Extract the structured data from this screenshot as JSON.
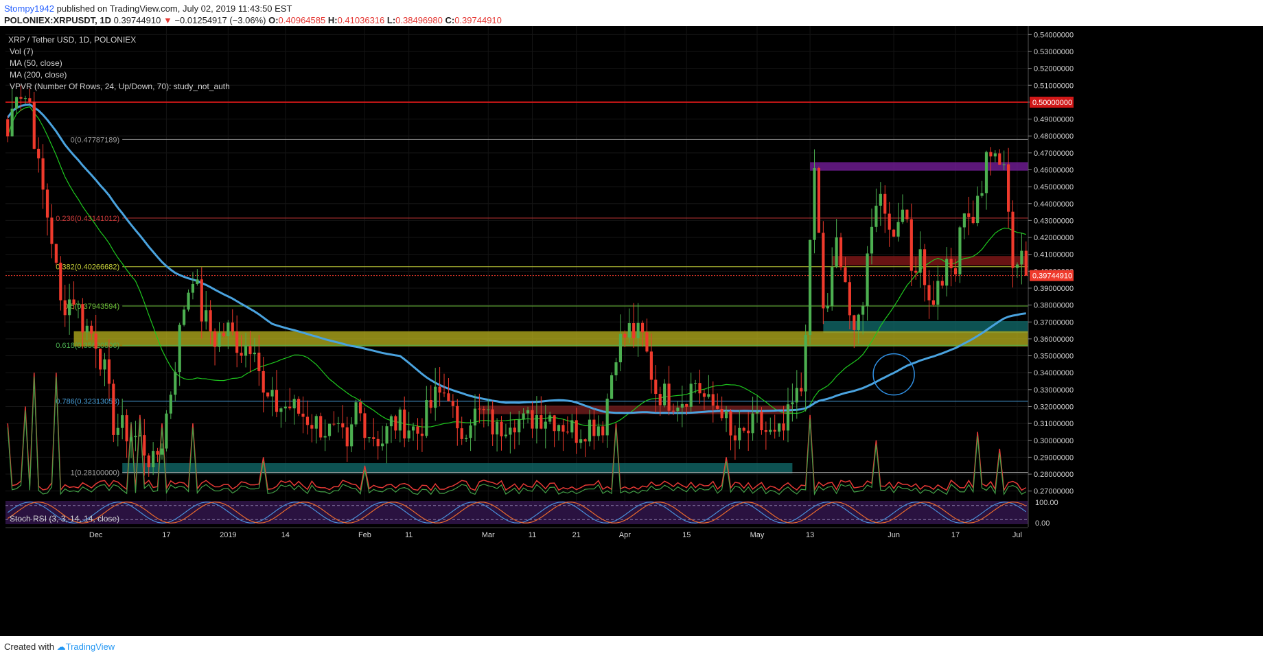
{
  "header": {
    "author": "Stompy1942",
    "published": "published on TradingView.com, July 02, 2019 11:43:50 EST",
    "symbol": "POLONIEX:XRPUSDT, 1D",
    "last": "0.39744910",
    "change_arrow": "▼",
    "change": "−0.01254917 (−3.06%)",
    "o_label": "O:",
    "o": "0.40964585",
    "h_label": "H:",
    "h": "0.41036316",
    "l_label": "L:",
    "l": "0.38496980",
    "c_label": "C:",
    "c": "0.39744910"
  },
  "footer": {
    "created_with": "Created with",
    "brand": "TradingView"
  },
  "colors": {
    "background": "#000000",
    "up": "#4caf50",
    "down": "#ef3a2c",
    "ma50": "#1ec81e",
    "ma200": "#4aa3df",
    "resistance": "#d01818",
    "stoch_k": "#4a8fd8",
    "stoch_d": "#e86a2c"
  },
  "chart_data": {
    "type": "candlestick",
    "title": "XRP / Tether USD, 1D, POLONIEX",
    "indicators": [
      "Vol (7)",
      "MA (50, close)",
      "MA (200, close)",
      "VPVR (Number Of Rows, 24, Up/Down, 70): study_not_auth"
    ],
    "ylim": [
      0.265,
      0.545
    ],
    "y_ticks": [
      "0.54000000",
      "0.53000000",
      "0.52000000",
      "0.51000000",
      "0.50000000",
      "0.49000000",
      "0.48000000",
      "0.47000000",
      "0.46000000",
      "0.45000000",
      "0.44000000",
      "0.43000000",
      "0.42000000",
      "0.41000000",
      "0.40000000",
      "0.39000000",
      "0.38000000",
      "0.37000000",
      "0.36000000",
      "0.35000000",
      "0.34000000",
      "0.33000000",
      "0.32000000",
      "0.31000000",
      "0.30000000",
      "0.29000000",
      "0.28000000",
      "0.27000000"
    ],
    "x_labels": [
      {
        "label": "Dec",
        "day": 20
      },
      {
        "label": "17",
        "day": 36
      },
      {
        "label": "2019",
        "day": 50
      },
      {
        "label": "14",
        "day": 63
      },
      {
        "label": "Feb",
        "day": 81
      },
      {
        "label": "11",
        "day": 91
      },
      {
        "label": "Mar",
        "day": 109
      },
      {
        "label": "11",
        "day": 119
      },
      {
        "label": "21",
        "day": 129
      },
      {
        "label": "Apr",
        "day": 140
      },
      {
        "label": "15",
        "day": 154
      },
      {
        "label": "May",
        "day": 170
      },
      {
        "label": "13",
        "day": 182
      },
      {
        "label": "Jun",
        "day": 201
      },
      {
        "label": "17",
        "day": 215
      },
      {
        "label": "Jul",
        "day": 229
      }
    ],
    "days_visible": 232,
    "last_price": 0.3974491,
    "last_price_label": "0.39744910",
    "resistance_line": {
      "value": 0.5,
      "label": "0.50000000"
    },
    "fib_levels": [
      {
        "ratio": "0",
        "value": 0.47787189,
        "label": "0(0.47787189)",
        "color": "#9e9e9e"
      },
      {
        "ratio": "0.236",
        "value": 0.43141012,
        "label": "0.236(0.43141012)",
        "color": "#d13b3b"
      },
      {
        "ratio": "0.382",
        "value": 0.40266682,
        "label": "0.382(0.40266682)",
        "color": "#c8d23a"
      },
      {
        "ratio": "0.5",
        "value": 0.37943594,
        "label": "0.5(0.37943594)",
        "color": "#6fc43a"
      },
      {
        "ratio": "0.618",
        "value": 0.35620506,
        "label": "0.618(0.35620506)",
        "color": "#4caf50"
      },
      {
        "ratio": "0.786",
        "value": 0.32313058,
        "label": "0.786(0.32313058)",
        "color": "#4aa3df"
      },
      {
        "ratio": "1",
        "value": 0.281,
        "label": "1(0.28100000)",
        "color": "#9e9e9e"
      }
    ],
    "zones": [
      {
        "name": "purple-resistance",
        "from": 0.4595,
        "to": 0.4645,
        "day_from": 182,
        "day_to": 232,
        "color": "#7b1fa2"
      },
      {
        "name": "red-resistance",
        "from": 0.4035,
        "to": 0.409,
        "day_from": 187,
        "day_to": 232,
        "color": "#8b1a1a"
      },
      {
        "name": "teal-support",
        "from": 0.3635,
        "to": 0.3705,
        "day_from": 185,
        "day_to": 232,
        "color": "#116e6e"
      },
      {
        "name": "yellow-support-band",
        "from": 0.3555,
        "to": 0.3645,
        "day_from": 15,
        "day_to": 232,
        "color": "#b9b21e"
      },
      {
        "name": "red-mid",
        "from": 0.3155,
        "to": 0.3205,
        "day_from": 107,
        "day_to": 178,
        "color": "#7a1f1f"
      },
      {
        "name": "teal-low",
        "from": 0.2805,
        "to": 0.2865,
        "day_from": 26,
        "day_to": 178,
        "color": "#116e6e"
      }
    ],
    "price_anchors": [
      [
        0,
        0.48
      ],
      [
        2,
        0.51
      ],
      [
        5,
        0.5
      ],
      [
        7,
        0.46
      ],
      [
        10,
        0.42
      ],
      [
        12,
        0.38
      ],
      [
        15,
        0.385
      ],
      [
        17,
        0.37
      ],
      [
        20,
        0.36
      ],
      [
        22,
        0.34
      ],
      [
        24,
        0.31
      ],
      [
        27,
        0.305
      ],
      [
        30,
        0.3
      ],
      [
        32,
        0.29
      ],
      [
        33,
        0.285
      ],
      [
        35,
        0.3
      ],
      [
        37,
        0.33
      ],
      [
        40,
        0.38
      ],
      [
        42,
        0.4
      ],
      [
        44,
        0.375
      ],
      [
        47,
        0.36
      ],
      [
        50,
        0.365
      ],
      [
        53,
        0.355
      ],
      [
        56,
        0.36
      ],
      [
        58,
        0.325
      ],
      [
        61,
        0.32
      ],
      [
        64,
        0.32
      ],
      [
        67,
        0.315
      ],
      [
        70,
        0.31
      ],
      [
        73,
        0.305
      ],
      [
        76,
        0.3
      ],
      [
        77,
        0.29
      ],
      [
        79,
        0.32
      ],
      [
        82,
        0.305
      ],
      [
        85,
        0.3
      ],
      [
        87,
        0.31
      ],
      [
        90,
        0.31
      ],
      [
        93,
        0.305
      ],
      [
        95,
        0.315
      ],
      [
        97,
        0.325
      ],
      [
        100,
        0.33
      ],
      [
        102,
        0.3
      ],
      [
        105,
        0.315
      ],
      [
        108,
        0.315
      ],
      [
        111,
        0.305
      ],
      [
        114,
        0.315
      ],
      [
        117,
        0.31
      ],
      [
        120,
        0.315
      ],
      [
        123,
        0.315
      ],
      [
        126,
        0.31
      ],
      [
        129,
        0.305
      ],
      [
        132,
        0.31
      ],
      [
        135,
        0.31
      ],
      [
        138,
        0.355
      ],
      [
        141,
        0.365
      ],
      [
        144,
        0.36
      ],
      [
        147,
        0.33
      ],
      [
        150,
        0.325
      ],
      [
        153,
        0.325
      ],
      [
        156,
        0.335
      ],
      [
        159,
        0.32
      ],
      [
        162,
        0.32
      ],
      [
        164,
        0.3
      ],
      [
        166,
        0.3
      ],
      [
        168,
        0.305
      ],
      [
        170,
        0.31
      ],
      [
        172,
        0.305
      ],
      [
        174,
        0.3
      ],
      [
        176,
        0.305
      ],
      [
        178,
        0.32
      ],
      [
        180,
        0.33
      ],
      [
        182,
        0.41
      ],
      [
        183,
        0.46
      ],
      [
        185,
        0.38
      ],
      [
        186,
        0.375
      ],
      [
        188,
        0.42
      ],
      [
        191,
        0.37
      ],
      [
        194,
        0.38
      ],
      [
        197,
        0.445
      ],
      [
        199,
        0.44
      ],
      [
        201,
        0.42
      ],
      [
        203,
        0.445
      ],
      [
        205,
        0.4
      ],
      [
        207,
        0.415
      ],
      [
        209,
        0.38
      ],
      [
        211,
        0.39
      ],
      [
        213,
        0.4
      ],
      [
        215,
        0.4
      ],
      [
        217,
        0.44
      ],
      [
        219,
        0.43
      ],
      [
        221,
        0.445
      ],
      [
        222,
        0.478
      ],
      [
        224,
        0.47
      ],
      [
        226,
        0.465
      ],
      [
        228,
        0.405
      ],
      [
        230,
        0.42
      ],
      [
        231,
        0.3974
      ]
    ],
    "vol_spikes": [
      [
        0,
        0.31
      ],
      [
        4,
        0.32
      ],
      [
        6,
        0.34
      ],
      [
        11,
        0.34
      ],
      [
        28,
        0.31
      ],
      [
        30,
        0.315
      ],
      [
        35,
        0.31
      ],
      [
        42,
        0.31
      ],
      [
        58,
        0.29
      ],
      [
        81,
        0.285
      ],
      [
        138,
        0.31
      ],
      [
        163,
        0.29
      ],
      [
        182,
        0.315
      ],
      [
        197,
        0.3
      ],
      [
        220,
        0.305
      ],
      [
        225,
        0.295
      ],
      [
        231,
        0.272
      ]
    ],
    "stoch_rsi": {
      "label": "Stoch RSI (3, 3, 14, 14, close)",
      "upper_label": "100.00",
      "lower_label": "0.00",
      "bands": [
        80,
        20
      ]
    },
    "annotation": "circle around MA50/MA200 crossover near day 201"
  }
}
